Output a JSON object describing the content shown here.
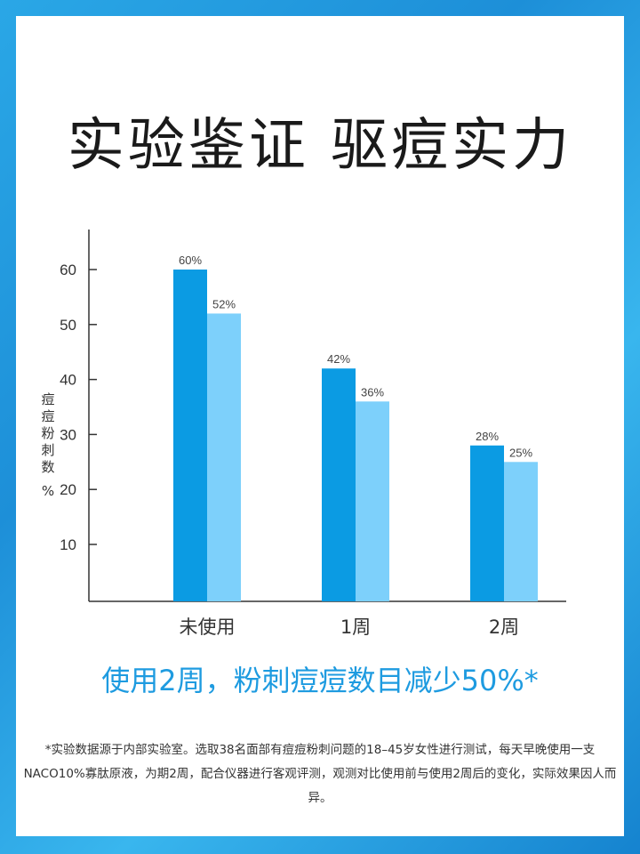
{
  "title": "实验鉴证  驱痘实力",
  "headline": "使用2周，粉刺痘痘数目减少50%*",
  "footnote": "*实验数据源于内部实验室。选取38名面部有痘痘粉刺问题的18–45岁女性进行测试，每天早晚使用一支NACO10%寡肽原液，为期2周，配合仪器进行客观评测，观测对比使用前与使用2周后的变化，实际效果因人而异。",
  "chart_data": {
    "type": "bar",
    "categories": [
      "未使用",
      "1周",
      "2周"
    ],
    "series": [
      {
        "values": [
          60,
          42,
          28
        ],
        "labels": [
          "60%",
          "42%",
          "28%"
        ],
        "color": "#0b9be3"
      },
      {
        "values": [
          52,
          36,
          25
        ],
        "labels": [
          "52%",
          "36%",
          "25%"
        ],
        "color": "#7dd0fb"
      }
    ],
    "yticks": [
      10,
      20,
      30,
      40,
      50,
      60
    ],
    "ylabel": "痘痘粉刺数%",
    "ylim": [
      0,
      68
    ],
    "grid": false
  }
}
